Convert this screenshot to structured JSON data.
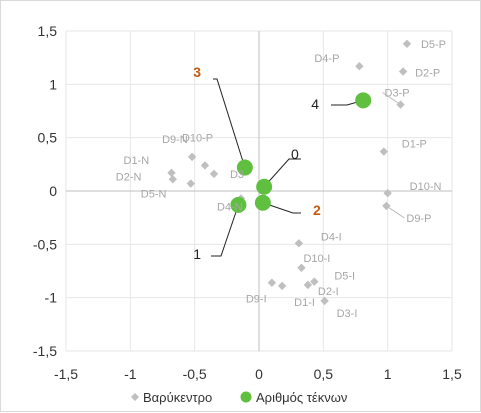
{
  "chart_data": {
    "type": "scatter",
    "title": "",
    "xlabel": "",
    "ylabel": "",
    "xlim": [
      -1.5,
      1.5
    ],
    "ylim": [
      -1.5,
      1.5
    ],
    "xticks": [
      "-1,5",
      "-1",
      "-0,5",
      "0",
      "0,5",
      "1",
      "1,5"
    ],
    "yticks": [
      "1,5",
      "1",
      "0,5",
      "0",
      "-0,5",
      "-1",
      "-1,5"
    ],
    "grid": true,
    "legend_position": "bottom",
    "series": [
      {
        "name": "Βαρύκεντρο",
        "color": "#bfbfbf",
        "marker": "diamond",
        "points": [
          {
            "label": "D4-P",
            "x": 0.78,
            "y": 1.17
          },
          {
            "label": "D5-P",
            "x": 1.15,
            "y": 1.38
          },
          {
            "label": "D2-P",
            "x": 1.12,
            "y": 1.12
          },
          {
            "label": "D3-P",
            "x": 1.1,
            "y": 0.81
          },
          {
            "label": "D1-P",
            "x": 0.97,
            "y": 0.37
          },
          {
            "label": "D10-N",
            "x": 1.0,
            "y": -0.02
          },
          {
            "label": "D9-P",
            "x": 0.99,
            "y": -0.14
          },
          {
            "label": "D9-N",
            "x": -0.52,
            "y": 0.32
          },
          {
            "label": "D10-P",
            "x": -0.42,
            "y": 0.24
          },
          {
            "label": "D1-N",
            "x": -0.68,
            "y": 0.17
          },
          {
            "label": "D2-N",
            "x": -0.67,
            "y": 0.11
          },
          {
            "label": "D3",
            "x": -0.35,
            "y": 0.16
          },
          {
            "label": "D5-N",
            "x": -0.53,
            "y": 0.07
          },
          {
            "label": "D4-N",
            "x": -0.14,
            "y": -0.07
          },
          {
            "label": "D4-I",
            "x": 0.31,
            "y": -0.49
          },
          {
            "label": "D10-I",
            "x": 0.33,
            "y": -0.72
          },
          {
            "label": "D5-I",
            "x": 0.43,
            "y": -0.85
          },
          {
            "label": "D2-I",
            "x": 0.38,
            "y": -0.88
          },
          {
            "label": "D3-I",
            "x": 0.51,
            "y": -1.03
          },
          {
            "label": "D9-I",
            "x": 0.1,
            "y": -0.86
          },
          {
            "label": "D1-I",
            "x": 0.18,
            "y": -0.89
          }
        ]
      },
      {
        "name": "Αριθμός τέκνων",
        "color": "#5fbf3f",
        "marker": "circle",
        "points": [
          {
            "label": "0",
            "x": 0.04,
            "y": 0.04
          },
          {
            "label": "1",
            "x": -0.16,
            "y": -0.13
          },
          {
            "label": "2",
            "x": 0.03,
            "y": -0.11
          },
          {
            "label": "3",
            "x": -0.11,
            "y": 0.22
          },
          {
            "label": "4",
            "x": 0.81,
            "y": 0.85
          }
        ]
      }
    ]
  }
}
